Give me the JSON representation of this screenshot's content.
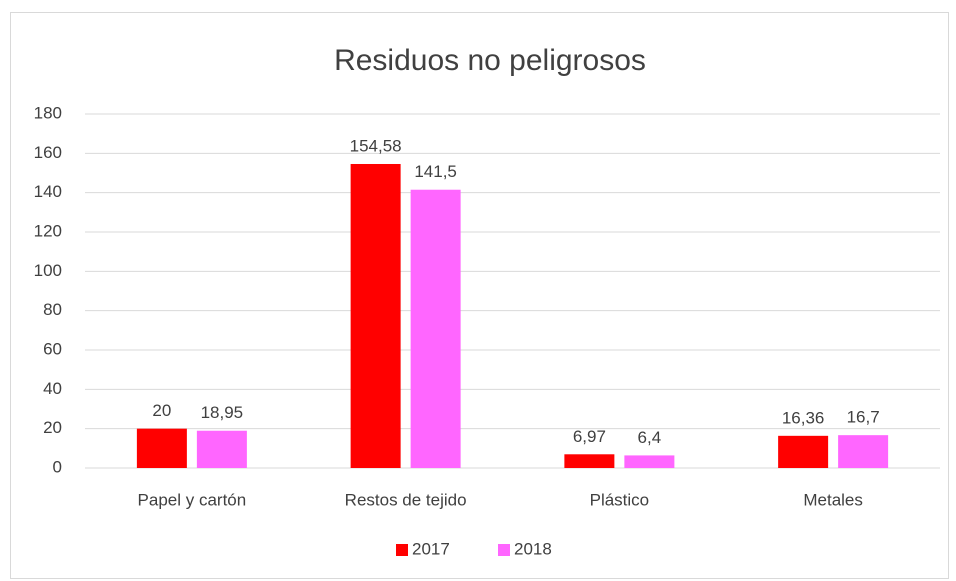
{
  "chart_data": {
    "type": "bar",
    "title": "Residuos no peligrosos",
    "categories": [
      "Papel y cartón",
      "Restos de tejido",
      "Plástico",
      "Metales"
    ],
    "series": [
      {
        "name": "2017",
        "color": "#ff0000",
        "values": [
          20,
          154.58,
          6.97,
          16.36
        ],
        "value_labels": [
          "20",
          "154,58",
          "6,97",
          "16,36"
        ]
      },
      {
        "name": "2018",
        "color": "#ff66ff",
        "values": [
          18.95,
          141.5,
          6.4,
          16.7
        ],
        "value_labels": [
          "18,95",
          "141,5",
          "6,4",
          "16,7"
        ]
      }
    ],
    "ylim": [
      0,
      180
    ],
    "yticks": [
      0,
      20,
      40,
      60,
      80,
      100,
      120,
      140,
      160,
      180
    ],
    "grid": true,
    "legend": "bottom"
  }
}
